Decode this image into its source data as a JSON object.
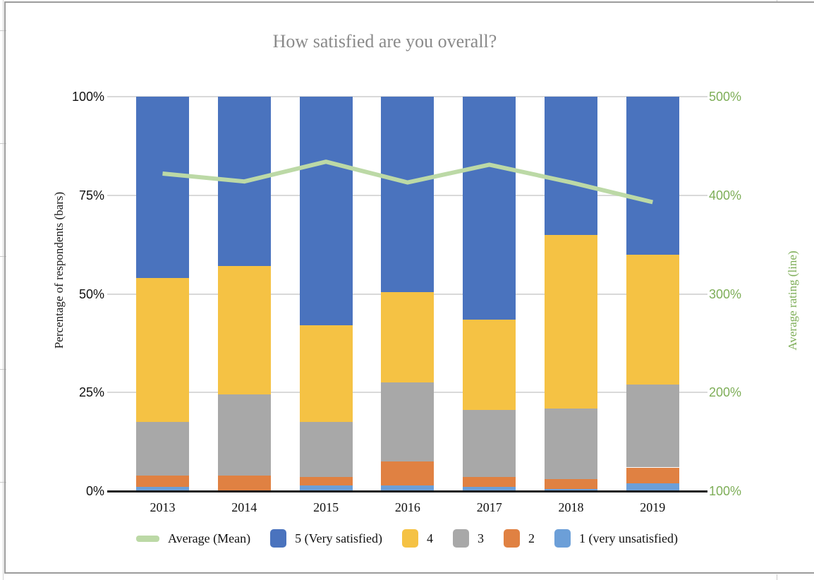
{
  "chart_data": {
    "type": "bar",
    "subtype": "stacked-bar-with-line",
    "title": "How satisfied are you overall?",
    "categories": [
      "2013",
      "2014",
      "2015",
      "2016",
      "2017",
      "2018",
      "2019"
    ],
    "series": [
      {
        "name": "1 (very unsatisfied)",
        "color": "#6C9FD8",
        "values": [
          1,
          0,
          1.5,
          1.5,
          1,
          0.5,
          2
        ]
      },
      {
        "name": "2",
        "color": "#E08142",
        "values": [
          3,
          4,
          2,
          6,
          2.5,
          2.5,
          4
        ]
      },
      {
        "name": "3",
        "color": "#A8A8A8",
        "values": [
          13.5,
          20.5,
          14,
          20,
          17,
          18,
          21
        ]
      },
      {
        "name": "4",
        "color": "#F5C244",
        "values": [
          36.5,
          32.5,
          24.5,
          23,
          23,
          44,
          33
        ]
      },
      {
        "name": "5 (Very satisfied)",
        "color": "#4A73BE",
        "values": [
          46,
          43,
          58,
          49.5,
          56.5,
          35,
          40
        ]
      }
    ],
    "line_series": {
      "name": "Average (Mean)",
      "color": "#BCD9A6",
      "axis": "right",
      "values": [
        422,
        414,
        434,
        413,
        431,
        413,
        393
      ]
    },
    "left_axis": {
      "title": "Percentage of respondents (bars)",
      "ticks": [
        "0%",
        "25%",
        "50%",
        "75%",
        "100%"
      ],
      "tick_values": [
        0,
        25,
        50,
        75,
        100
      ],
      "min": 0,
      "max": 100
    },
    "right_axis": {
      "title": "Average rating (line)",
      "ticks": [
        "100%",
        "200%",
        "300%",
        "400%",
        "500%"
      ],
      "tick_values": [
        100,
        200,
        300,
        400,
        500
      ],
      "min": 100,
      "max": 500,
      "color": "#7EAE58"
    },
    "legend": {
      "position": "bottom",
      "items": [
        {
          "swatch": "line",
          "label": "Average (Mean)",
          "color": "#BCD9A6"
        },
        {
          "swatch": "box",
          "label": "5 (Very satisfied)",
          "color": "#4A73BE"
        },
        {
          "swatch": "box",
          "label": "4",
          "color": "#F5C244"
        },
        {
          "swatch": "box",
          "label": "3",
          "color": "#A8A8A8"
        },
        {
          "swatch": "box",
          "label": "2",
          "color": "#E08142"
        },
        {
          "swatch": "box",
          "label": "1 (very unsatisfied)",
          "color": "#6C9FD8"
        }
      ]
    },
    "grid": true
  },
  "colors": {
    "title_text": "#8A8A8A",
    "gridline": "#D9D9D9",
    "axis_line": "#1C1C1C",
    "frame_border": "#9C9C9C",
    "spreadsheet_line": "#C9C9C9"
  }
}
